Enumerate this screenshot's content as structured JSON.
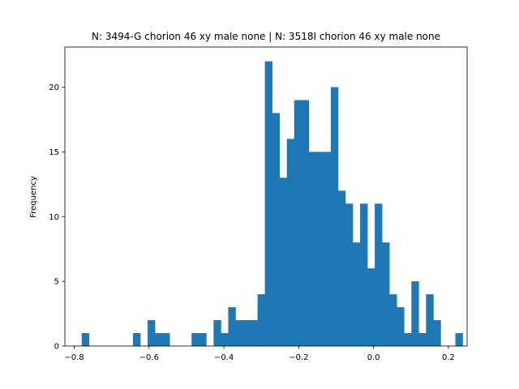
{
  "chart_data": {
    "type": "bar",
    "title": "N: 3494-G chorion 46 xy male none | N: 3518I chorion 46 xy male none",
    "xlabel": "",
    "ylabel": "Frequency",
    "xlim": [
      -0.825,
      0.25
    ],
    "ylim": [
      0,
      23.1
    ],
    "xticks": [
      -0.8,
      -0.6,
      -0.4,
      -0.2,
      0.0,
      0.2
    ],
    "xtick_labels": [
      "−0.8",
      "−0.6",
      "−0.4",
      "−0.2",
      "0.0",
      "0.2"
    ],
    "yticks": [
      0,
      5,
      10,
      15,
      20
    ],
    "ytick_labels": [
      "0",
      "5",
      "10",
      "15",
      "20"
    ],
    "bin_start": -0.78,
    "bin_width": 0.01958,
    "values": [
      1,
      0,
      0,
      0,
      0,
      0,
      0,
      1,
      0,
      2,
      1,
      1,
      0,
      0,
      0,
      1,
      1,
      0,
      2,
      1,
      3,
      2,
      2,
      2,
      4,
      22,
      18,
      13,
      16,
      19,
      19,
      15,
      15,
      15,
      20,
      12,
      11,
      8,
      11,
      6,
      11,
      8,
      4,
      3,
      1,
      5,
      1,
      4,
      2,
      0,
      0,
      1
    ],
    "color": "#1f77b4",
    "grid": false,
    "legend": "none"
  }
}
